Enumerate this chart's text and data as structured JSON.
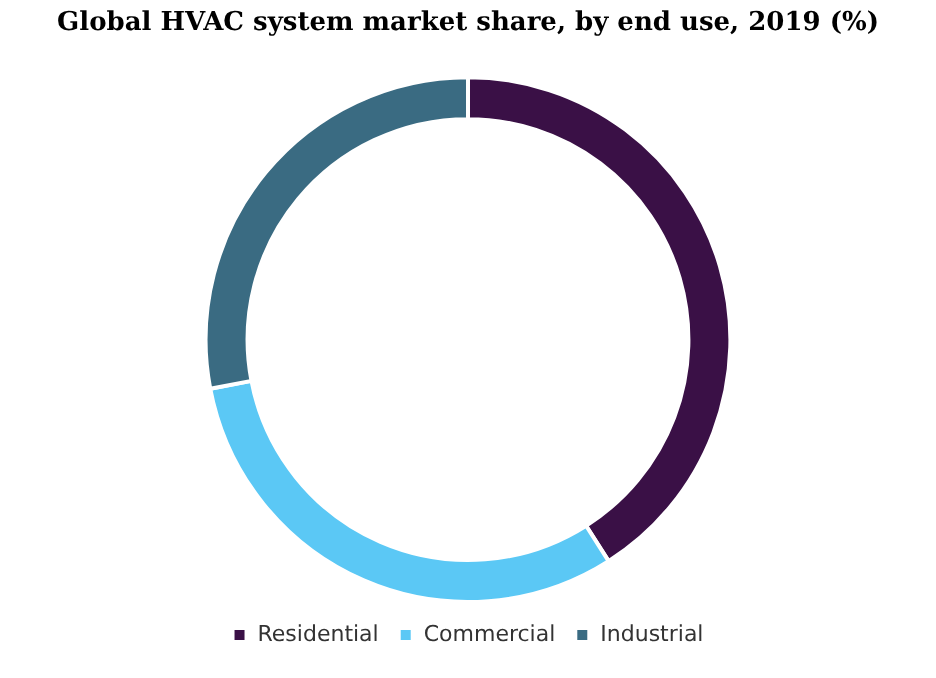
{
  "chart_data": {
    "type": "donut",
    "title": "Global HVAC system market share, by end use, 2019 (%)",
    "categories": [
      "Residential",
      "Commercial",
      "Industrial"
    ],
    "values": [
      41,
      31,
      28
    ],
    "colors": [
      "#3a1046",
      "#5bc8f5",
      "#3a6b82"
    ],
    "legend": "bottom"
  }
}
